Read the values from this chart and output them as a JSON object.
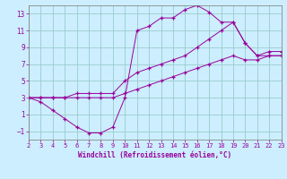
{
  "xlabel": "Windchill (Refroidissement éolien,°C)",
  "background_color": "#cceeff",
  "grid_color": "#99cccc",
  "line_color": "#990099",
  "xlim": [
    2,
    23
  ],
  "ylim": [
    -2,
    14
  ],
  "xticks": [
    2,
    3,
    4,
    5,
    6,
    7,
    8,
    9,
    10,
    11,
    12,
    13,
    14,
    15,
    16,
    17,
    18,
    19,
    20,
    21,
    22,
    23
  ],
  "yticks": [
    -1,
    1,
    3,
    5,
    7,
    9,
    11,
    13
  ],
  "series": [
    {
      "x": [
        2,
        3,
        4,
        5,
        6,
        7,
        8,
        9,
        10,
        11,
        12,
        13,
        14,
        15,
        16,
        17,
        18,
        19,
        20,
        21,
        22,
        23
      ],
      "y": [
        3,
        3,
        3,
        3,
        3,
        3,
        3,
        3,
        3.5,
        4,
        4.5,
        5,
        5.5,
        6,
        6.5,
        7,
        7.5,
        8,
        7.5,
        7.5,
        8,
        8
      ]
    },
    {
      "x": [
        2,
        3,
        4,
        5,
        6,
        7,
        8,
        9,
        10,
        11,
        12,
        13,
        14,
        15,
        16,
        17,
        18,
        19,
        20,
        21,
        22,
        23
      ],
      "y": [
        3,
        3,
        3,
        3,
        3.5,
        3.5,
        3.5,
        3.5,
        5,
        6,
        6.5,
        7,
        7.5,
        8,
        9,
        10,
        11,
        12,
        9.5,
        8,
        8.5,
        8.5
      ]
    },
    {
      "x": [
        2,
        3,
        4,
        5,
        6,
        7,
        8,
        9,
        10,
        11,
        12,
        13,
        14,
        15,
        16,
        17,
        18,
        19,
        20,
        21,
        22,
        23
      ],
      "y": [
        3,
        2.5,
        1.5,
        0.5,
        -0.5,
        -1.2,
        -1.2,
        -0.5,
        3,
        11,
        11.5,
        12.5,
        12.5,
        13.5,
        14.0,
        13.2,
        12,
        12,
        9.5,
        8,
        8,
        8
      ]
    }
  ]
}
